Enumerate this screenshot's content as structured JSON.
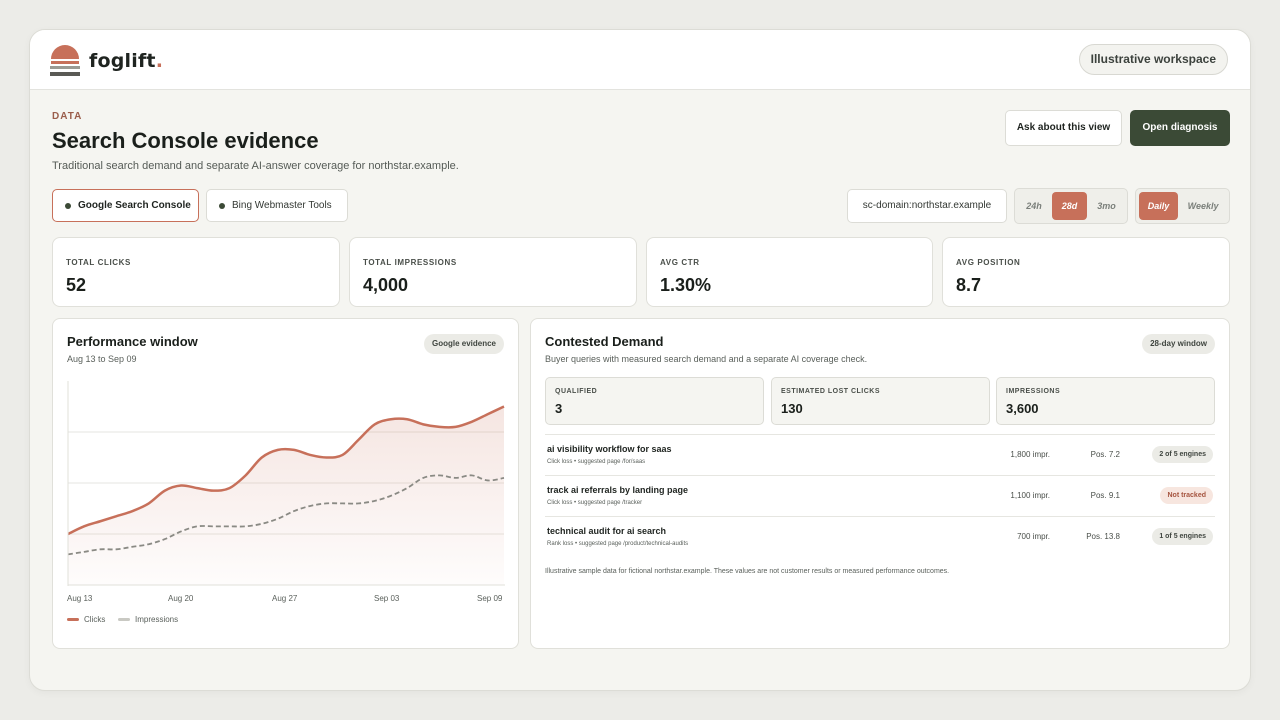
{
  "app": {
    "brand_name": "foglift",
    "brand_dot": ".",
    "workspace": "Illustrative workspace"
  },
  "header": {
    "eyebrow": "DATA",
    "title": "Search Console evidence",
    "subtitle": "Traditional search demand and separate AI-answer coverage for northstar.example.",
    "ask_button": "Ask about this view",
    "diagnosis_button": "Open diagnosis"
  },
  "sources": [
    {
      "label": "Google Search Console",
      "active": true
    },
    {
      "label": "Bing Webmaster Tools",
      "active": false
    }
  ],
  "domain": "sc-domain:northstar.example",
  "ranges": {
    "options": [
      "24h",
      "28d",
      "3mo"
    ],
    "selected": "28d"
  },
  "granularity": {
    "options": [
      "Daily",
      "Weekly"
    ],
    "selected": "Daily"
  },
  "kpis": [
    {
      "label": "TOTAL CLICKS",
      "value": "52"
    },
    {
      "label": "TOTAL IMPRESSIONS",
      "value": "4,000"
    },
    {
      "label": "AVG CTR",
      "value": "1.30%"
    },
    {
      "label": "AVG POSITION",
      "value": "8.7"
    }
  ],
  "performance": {
    "title": "Performance window",
    "range": "Aug 13 to Sep 09",
    "chip": "Google evidence",
    "legend": [
      "Clicks",
      "Impressions"
    ],
    "xticks": [
      "Aug 13",
      "Aug 20",
      "Aug 27",
      "Sep 03",
      "Sep 09"
    ]
  },
  "chart_data": {
    "type": "line",
    "x": [
      0,
      1,
      2,
      3,
      4,
      5,
      6,
      7,
      8,
      9,
      10,
      11,
      12,
      13,
      14,
      15,
      16,
      17,
      18,
      19,
      20,
      21,
      22,
      23,
      24,
      25,
      26,
      27
    ],
    "xtick_labels": [
      "Aug 13",
      "Aug 20",
      "Aug 27",
      "Sep 03",
      "Sep 09"
    ],
    "series": [
      {
        "name": "Clicks",
        "color": "#c7705a",
        "values": [
          20,
          23,
          25,
          27,
          29,
          32,
          37,
          39,
          38,
          37,
          38,
          43,
          50,
          53,
          53,
          51,
          50,
          51,
          57,
          63,
          65,
          65,
          63,
          62,
          62,
          64,
          67,
          70
        ]
      },
      {
        "name": "Impressions",
        "color": "#8a8a84",
        "values": [
          12,
          13,
          14,
          14,
          15,
          16,
          18,
          21,
          23,
          23,
          23,
          23,
          24,
          26,
          29,
          31,
          32,
          32,
          32,
          33,
          35,
          38,
          42,
          43,
          42,
          43,
          41,
          42
        ]
      }
    ],
    "ylim": [
      0,
      80
    ],
    "grid": true,
    "legend": "bottom-left"
  },
  "contested": {
    "title": "Contested Demand",
    "subtitle": "Buyer queries with measured search demand and a separate AI coverage check.",
    "chip": "28-day window",
    "stats": [
      {
        "label": "QUALIFIED",
        "value": "3"
      },
      {
        "label": "ESTIMATED LOST CLICKS",
        "value": "130"
      },
      {
        "label": "IMPRESSIONS",
        "value": "3,600"
      }
    ],
    "rows": [
      {
        "query": "ai visibility workflow for saas",
        "sub": "Click loss • suggested page /for/saas",
        "impr": "1,800 impr.",
        "pos": "Pos. 7.2",
        "badge": "2 of 5 engines",
        "warn": false
      },
      {
        "query": "track ai referrals by landing page",
        "sub": "Click loss • suggested page /tracker",
        "impr": "1,100 impr.",
        "pos": "Pos. 9.1",
        "badge": "Not tracked",
        "warn": true
      },
      {
        "query": "technical audit for ai search",
        "sub": "Rank loss • suggested page /product/technical-audits",
        "impr": "700 impr.",
        "pos": "Pos. 13.8",
        "badge": "1 of 5 engines",
        "warn": false
      }
    ],
    "disclaimer": "Illustrative sample data for fictional northstar.example. These values are not customer results or measured performance outcomes."
  }
}
